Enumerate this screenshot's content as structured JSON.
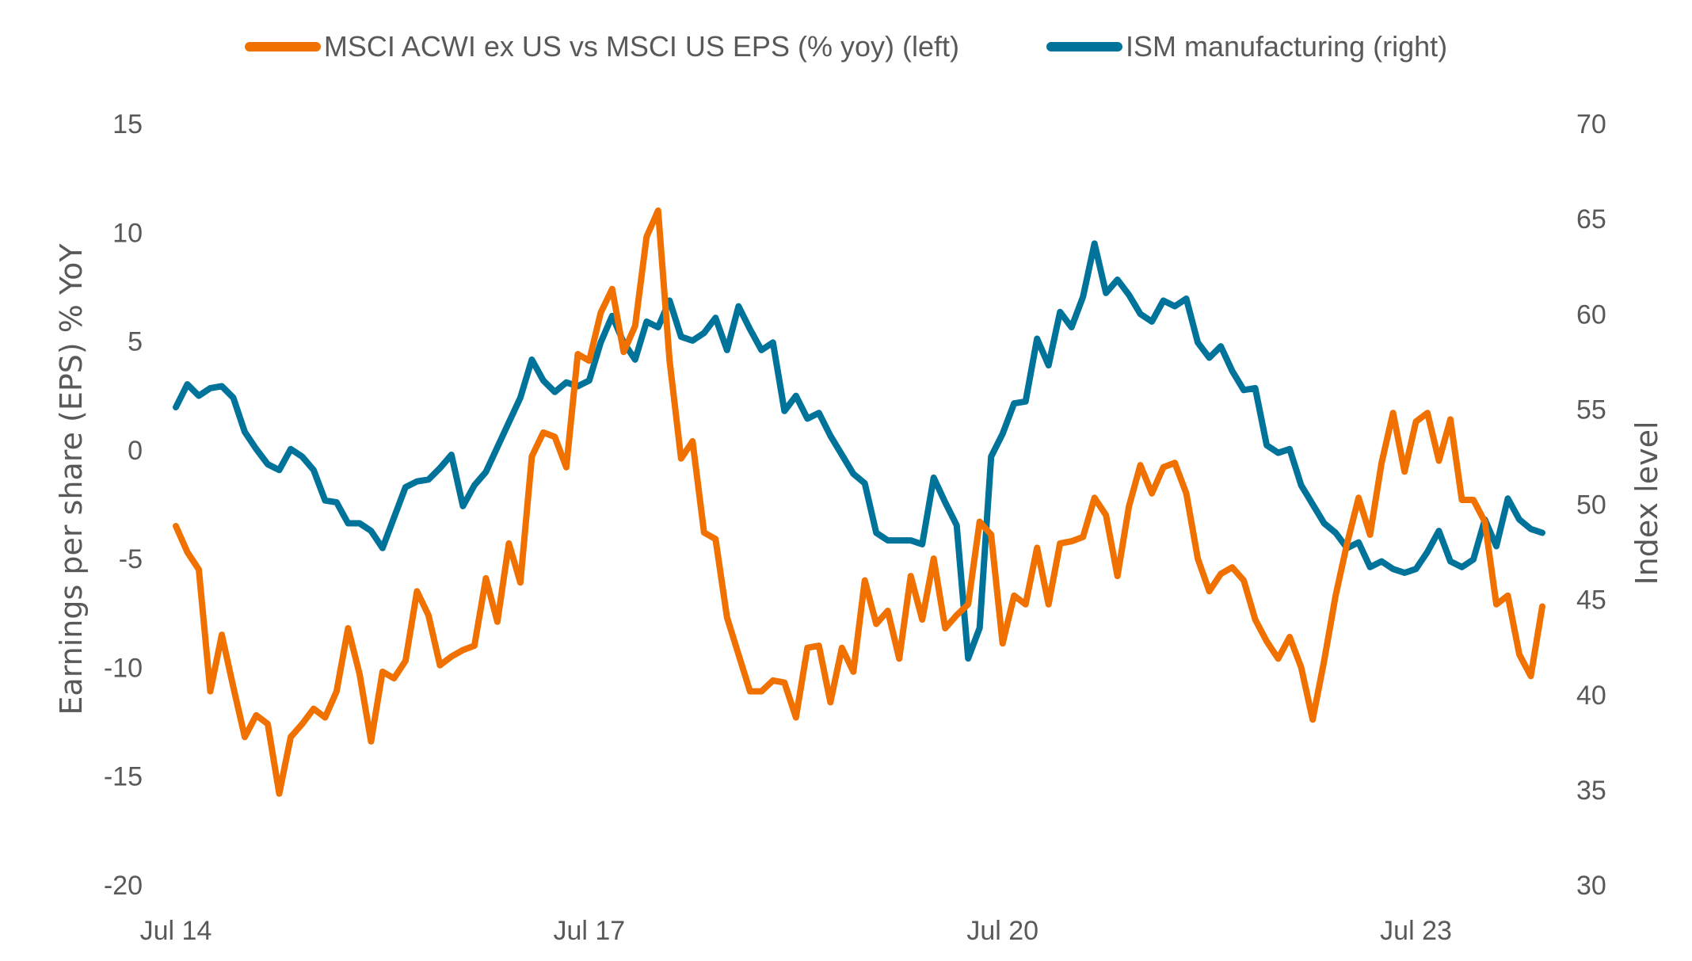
{
  "chart_data": {
    "type": "line",
    "title": "",
    "legend_position": "top-center",
    "colors": {
      "eps": "#F07000",
      "ism": "#00739A",
      "text": "#595959"
    },
    "x_start": "Jul 2014",
    "x_frequency": "monthly",
    "x_tick_labels": [
      {
        "label": "Jul 14",
        "index": 0
      },
      {
        "label": "Jul 17",
        "index": 36
      },
      {
        "label": "Jul 20",
        "index": 72
      },
      {
        "label": "Jul 23",
        "index": 108
      }
    ],
    "y_left": {
      "label": "Earnings per share (EPS) % YoY",
      "range": [
        -20,
        15
      ],
      "ticks": [
        15,
        10,
        5,
        0,
        -5,
        -10,
        -15,
        -20
      ]
    },
    "y_right": {
      "label": "Index level",
      "range": [
        30,
        70
      ],
      "ticks": [
        70,
        65,
        60,
        55,
        50,
        45,
        40,
        35,
        30
      ]
    },
    "grid": false,
    "series": [
      {
        "name": "MSCI ACWI ex US vs MSCI US EPS (% yoy) (left)",
        "axis": "left",
        "color": "#F07000",
        "values": [
          -3.5,
          -4.7,
          -5.5,
          -11.1,
          -8.5,
          -10.9,
          -13.2,
          -12.2,
          -12.6,
          -15.8,
          -13.2,
          -12.6,
          -11.9,
          -12.3,
          -11.1,
          -8.2,
          -10.3,
          -13.4,
          -10.2,
          -10.5,
          -9.7,
          -6.5,
          -7.6,
          -9.9,
          -9.5,
          -9.2,
          -9.0,
          -5.9,
          -7.9,
          -4.3,
          -6.1,
          -0.3,
          0.8,
          0.6,
          -0.8,
          4.4,
          4.1,
          6.3,
          7.4,
          4.5,
          5.7,
          9.8,
          11.0,
          4.1,
          -0.4,
          0.4,
          -3.8,
          -4.1,
          -7.7,
          -9.4,
          -11.1,
          -11.1,
          -10.6,
          -10.7,
          -12.3,
          -9.1,
          -9.0,
          -11.6,
          -9.1,
          -10.2,
          -6.0,
          -8.0,
          -7.4,
          -9.6,
          -5.8,
          -7.8,
          -5.0,
          -8.2,
          -7.6,
          -7.1,
          -3.3,
          -3.9,
          -8.9,
          -6.7,
          -7.1,
          -4.5,
          -7.1,
          -4.3,
          -4.2,
          -4.0,
          -2.2,
          -3.0,
          -5.8,
          -2.6,
          -0.7,
          -2.0,
          -0.8,
          -0.6,
          -2.0,
          -5.0,
          -6.5,
          -5.7,
          -5.4,
          -6.0,
          -7.8,
          -8.8,
          -9.6,
          -8.6,
          -10.0,
          -12.4,
          -9.7,
          -6.7,
          -4.3,
          -2.2,
          -3.9,
          -0.6,
          1.7,
          -1.0,
          1.3,
          1.7,
          -0.5,
          1.4,
          -2.3,
          -2.3,
          -3.3,
          -7.1,
          -6.7,
          -9.4,
          -10.4,
          -7.2
        ]
      },
      {
        "name": "ISM manufacturing (right)",
        "axis": "right",
        "color": "#00739A",
        "values": [
          55.1,
          56.3,
          55.7,
          56.1,
          56.2,
          55.6,
          53.8,
          52.9,
          52.1,
          51.8,
          52.9,
          52.5,
          51.8,
          50.2,
          50.1,
          49.0,
          49.0,
          48.6,
          47.7,
          49.3,
          50.9,
          51.2,
          51.3,
          51.9,
          52.6,
          49.9,
          51.0,
          51.7,
          53.0,
          54.3,
          55.6,
          57.6,
          56.5,
          55.9,
          56.4,
          56.2,
          56.5,
          58.5,
          59.9,
          58.5,
          57.6,
          59.6,
          59.3,
          60.7,
          58.8,
          58.6,
          59.0,
          59.8,
          58.1,
          60.4,
          59.2,
          58.1,
          58.5,
          54.9,
          55.7,
          54.5,
          54.8,
          53.6,
          52.6,
          51.6,
          51.1,
          48.5,
          48.1,
          48.1,
          48.1,
          47.9,
          51.4,
          50.1,
          48.9,
          41.9,
          43.5,
          52.5,
          53.7,
          55.3,
          55.4,
          58.7,
          57.3,
          60.1,
          59.3,
          60.9,
          63.7,
          61.1,
          61.8,
          61.0,
          60.0,
          59.6,
          60.7,
          60.4,
          60.8,
          58.5,
          57.7,
          58.3,
          57.0,
          56.0,
          56.1,
          53.1,
          52.7,
          52.9,
          51.0,
          50.0,
          49.0,
          48.5,
          47.7,
          48.0,
          46.7,
          47.0,
          46.6,
          46.4,
          46.6,
          47.5,
          48.6,
          47.0,
          46.7,
          47.1,
          49.2,
          47.8,
          50.3,
          49.2,
          48.7,
          48.5
        ]
      }
    ]
  }
}
